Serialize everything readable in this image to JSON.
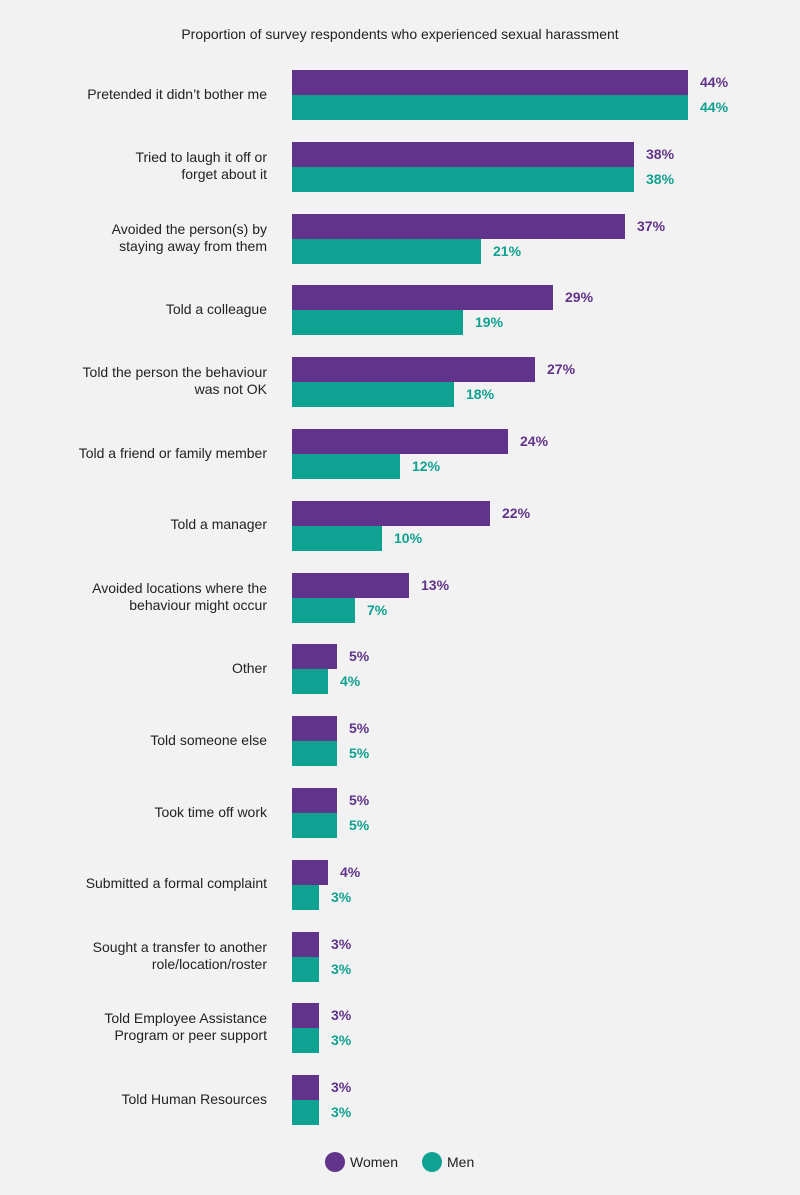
{
  "chart_data": {
    "type": "bar",
    "orientation": "horizontal",
    "title": "Proportion of survey respondents who experienced sexual harassment",
    "categories": [
      [
        "Pretended it didn’t bother me"
      ],
      [
        "Tried to laugh it off or",
        "forget about it"
      ],
      [
        "Avoided the person(s) by",
        "staying away from them"
      ],
      [
        "Told a colleague"
      ],
      [
        "Told the person the behaviour",
        "was not OK"
      ],
      [
        "Told a friend or family member"
      ],
      [
        "Told a manager"
      ],
      [
        "Avoided locations where the",
        "behaviour might occur"
      ],
      [
        "Other"
      ],
      [
        "Told someone else"
      ],
      [
        "Took time off work"
      ],
      [
        "Submitted a formal complaint"
      ],
      [
        "Sought a transfer to another",
        "role/location/roster"
      ],
      [
        "Told Employee Assistance",
        "Program or peer support"
      ],
      [
        "Told Human Resources"
      ]
    ],
    "series": [
      {
        "name": "Women",
        "color": "#61338a",
        "values": [
          44,
          38,
          37,
          29,
          27,
          24,
          22,
          13,
          5,
          5,
          5,
          4,
          3,
          3,
          3
        ]
      },
      {
        "name": "Men",
        "color": "#0fa191",
        "values": [
          44,
          38,
          21,
          19,
          18,
          12,
          10,
          7,
          4,
          5,
          5,
          3,
          3,
          3,
          3
        ]
      }
    ],
    "value_suffix": "%",
    "xlim": [
      0,
      50
    ],
    "grid": false,
    "legend_position": "bottom-center"
  }
}
